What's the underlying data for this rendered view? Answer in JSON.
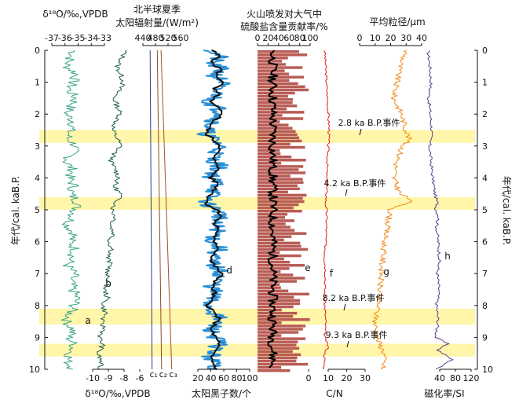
{
  "chart_data": {
    "type": "line",
    "title": "",
    "y_axis": {
      "label_left": "年代/cal. kaB.P.",
      "label_right": "年代/cal. kaB.P.",
      "range": [
        0,
        10
      ],
      "ticks": [
        "0",
        "1",
        "2",
        "3",
        "4",
        "5",
        "6",
        "7",
        "8",
        "9",
        "10"
      ]
    },
    "events": [
      {
        "label": "2.8 ka B.P.事件",
        "start": 2.5,
        "end": 2.9
      },
      {
        "label": "4.2 ka B.P.事件",
        "start": 4.6,
        "end": 5.0
      },
      {
        "label": "8.2 ka B.P.事件",
        "start": 8.1,
        "end": 8.6
      },
      {
        "label": "9.3 ka B.P.事件",
        "start": 9.2,
        "end": 9.6
      }
    ],
    "panels": [
      {
        "id": "a",
        "name": "a",
        "top_label": "δ¹⁸O/‰,VPDB",
        "top_ticks": [
          "-37",
          "-36",
          "-35",
          "-34",
          "-33"
        ],
        "top_range": [
          -37,
          -33
        ],
        "color": "#3aa38a",
        "values": [
          [
            0,
            -35.3
          ],
          [
            0.25,
            -35.6
          ],
          [
            0.5,
            -35.9
          ],
          [
            0.75,
            -35.1
          ],
          [
            1,
            -35.4
          ],
          [
            1.25,
            -35.7
          ],
          [
            1.5,
            -35.2
          ],
          [
            1.75,
            -35.5
          ],
          [
            2,
            -35.9
          ],
          [
            2.25,
            -35.3
          ],
          [
            2.5,
            -35.6
          ],
          [
            2.75,
            -35.8
          ],
          [
            3,
            -35.2
          ],
          [
            3.25,
            -35.5
          ],
          [
            3.5,
            -35.9
          ],
          [
            3.75,
            -35.4
          ],
          [
            4,
            -35.7
          ],
          [
            4.25,
            -35.3
          ],
          [
            4.5,
            -35.6
          ],
          [
            4.75,
            -35.0
          ],
          [
            5,
            -35.2
          ],
          [
            5.25,
            -35.5
          ],
          [
            5.5,
            -35.8
          ],
          [
            5.75,
            -35.3
          ],
          [
            6,
            -35.6
          ],
          [
            6.25,
            -35.2
          ],
          [
            6.5,
            -35.5
          ],
          [
            6.75,
            -35.8
          ],
          [
            7,
            -35.3
          ],
          [
            7.25,
            -35.6
          ],
          [
            7.5,
            -35.4
          ],
          [
            7.75,
            -35.1
          ],
          [
            8,
            -35.3
          ],
          [
            8.25,
            -35.6
          ],
          [
            8.5,
            -35.9
          ],
          [
            8.75,
            -35.4
          ],
          [
            9,
            -35.7
          ],
          [
            9.25,
            -35.3
          ],
          [
            9.5,
            -35.6
          ],
          [
            9.75,
            -35.8
          ],
          [
            10,
            -35.4
          ]
        ]
      },
      {
        "id": "b",
        "name": "b",
        "bottom_label": "δ¹⁸O/‰,VPDB",
        "bottom_ticks": [
          "-10",
          "-9",
          "-8"
        ],
        "bottom_range": [
          -10.5,
          -7.5
        ],
        "color": "#1f5e57",
        "values": [
          [
            0,
            -8.1
          ],
          [
            0.25,
            -8.3
          ],
          [
            0.5,
            -8.6
          ],
          [
            0.75,
            -8.4
          ],
          [
            1,
            -8.2
          ],
          [
            1.25,
            -8.5
          ],
          [
            1.5,
            -8.8
          ],
          [
            1.75,
            -8.6
          ],
          [
            2,
            -8.4
          ],
          [
            2.25,
            -8.7
          ],
          [
            2.5,
            -8.9
          ],
          [
            2.75,
            -8.6
          ],
          [
            3,
            -8.4
          ],
          [
            3.25,
            -8.8
          ],
          [
            3.5,
            -9.0
          ],
          [
            3.75,
            -8.7
          ],
          [
            4,
            -8.5
          ],
          [
            4.25,
            -8.8
          ],
          [
            4.5,
            -8.4
          ],
          [
            4.75,
            -8.6
          ],
          [
            5,
            -8.9
          ],
          [
            5.25,
            -8.7
          ],
          [
            5.5,
            -9.0
          ],
          [
            5.75,
            -8.8
          ],
          [
            6,
            -9.1
          ],
          [
            6.25,
            -8.9
          ],
          [
            6.5,
            -9.2
          ],
          [
            6.75,
            -9.0
          ],
          [
            7,
            -9.3
          ],
          [
            7.25,
            -9.1
          ],
          [
            7.5,
            -9.4
          ],
          [
            7.75,
            -9.2
          ],
          [
            8,
            -9.5
          ],
          [
            8.25,
            -9.3
          ],
          [
            8.5,
            -9.6
          ],
          [
            8.75,
            -9.4
          ],
          [
            9,
            -9.7
          ],
          [
            9.25,
            -9.5
          ],
          [
            9.5,
            -9.8
          ],
          [
            9.75,
            -9.6
          ],
          [
            10,
            -9.7
          ]
        ]
      },
      {
        "id": "c",
        "name": "c",
        "top_label": "北半球夏季",
        "top_label2": "太阳辐射量/(W/m²)",
        "top_ticks": [
          "440",
          "480",
          "520",
          "560"
        ],
        "top_range": [
          440,
          560
        ],
        "bottom_ticks": [
          "-6"
        ],
        "series_labels": [
          "c₁",
          "c₂",
          "c₃"
        ],
        "colors": [
          "#2b3a8c",
          "#8b4a2b",
          "#a0522d"
        ],
        "c1": [
          [
            0,
            465
          ],
          [
            10,
            472
          ]
        ],
        "c2": [
          [
            0,
            490
          ],
          [
            10,
            505
          ]
        ],
        "c3": [
          [
            0,
            503
          ],
          [
            10,
            540
          ]
        ]
      },
      {
        "id": "d",
        "name": "d",
        "bottom_label": "太阳黑子数/个",
        "bottom_ticks": [
          "20",
          "40",
          "60",
          "80",
          "100"
        ],
        "bottom_range": [
          0,
          100
        ],
        "colors": [
          "#2a8fd6",
          "#111111"
        ],
        "values": [
          [
            0,
            40
          ],
          [
            0.2,
            52
          ],
          [
            0.4,
            38
          ],
          [
            0.6,
            55
          ],
          [
            0.8,
            45
          ],
          [
            1,
            60
          ],
          [
            1.2,
            42
          ],
          [
            1.4,
            50
          ],
          [
            1.6,
            35
          ],
          [
            1.8,
            48
          ],
          [
            2,
            58
          ],
          [
            2.2,
            44
          ],
          [
            2.4,
            36
          ],
          [
            2.6,
            30
          ],
          [
            2.8,
            42
          ],
          [
            3,
            55
          ],
          [
            3.2,
            48
          ],
          [
            3.4,
            40
          ],
          [
            3.6,
            52
          ],
          [
            3.8,
            46
          ],
          [
            4,
            38
          ],
          [
            4.2,
            50
          ],
          [
            4.4,
            44
          ],
          [
            4.6,
            36
          ],
          [
            4.8,
            30
          ],
          [
            5,
            48
          ],
          [
            5.2,
            56
          ],
          [
            5.4,
            42
          ],
          [
            5.6,
            50
          ],
          [
            5.8,
            46
          ],
          [
            6,
            40
          ],
          [
            6.2,
            52
          ],
          [
            6.4,
            44
          ],
          [
            6.6,
            38
          ],
          [
            6.8,
            46
          ],
          [
            7,
            55
          ],
          [
            7.2,
            48
          ],
          [
            7.4,
            40
          ],
          [
            7.6,
            44
          ],
          [
            7.8,
            38
          ],
          [
            8,
            34
          ],
          [
            8.2,
            42
          ],
          [
            8.4,
            50
          ],
          [
            8.6,
            44
          ],
          [
            8.8,
            38
          ],
          [
            9,
            46
          ],
          [
            9.2,
            52
          ],
          [
            9.4,
            44
          ],
          [
            9.6,
            38
          ],
          [
            9.8,
            42
          ],
          [
            10,
            48
          ]
        ]
      },
      {
        "id": "e",
        "name": "e",
        "top_label": "火山喷发对大气中",
        "top_label2": "硫酸盐含量贡献率/%",
        "top_ticks": [
          "0",
          "20",
          "40",
          "60",
          "80",
          "100"
        ],
        "top_range": [
          0,
          100
        ],
        "bottom_ticks": [
          "0"
        ],
        "color": "#b85c55"
      },
      {
        "id": "f",
        "name": "f",
        "bottom_label": "C/N",
        "bottom_ticks": [
          "10",
          "20",
          "30"
        ],
        "bottom_range": [
          0,
          30
        ],
        "color": "#e02020",
        "values": [
          [
            0,
            7
          ],
          [
            0.5,
            7.5
          ],
          [
            1,
            8
          ],
          [
            1.5,
            8.5
          ],
          [
            2,
            9
          ],
          [
            2.5,
            9.5
          ],
          [
            3,
            9
          ],
          [
            3.5,
            8.5
          ],
          [
            4,
            8
          ],
          [
            4.5,
            8
          ],
          [
            4.8,
            7.5
          ],
          [
            5,
            8
          ],
          [
            5.5,
            8
          ],
          [
            6,
            7.5
          ],
          [
            6.5,
            7
          ],
          [
            7,
            7.5
          ],
          [
            7.5,
            7
          ],
          [
            8,
            7
          ],
          [
            8.5,
            7.5
          ],
          [
            9,
            7
          ],
          [
            9.3,
            9
          ],
          [
            9.5,
            7
          ],
          [
            10,
            6.5
          ]
        ]
      },
      {
        "id": "g",
        "name": "g",
        "top_label": "平均粒径/μm",
        "top_ticks": [
          "0",
          "10",
          "20",
          "30",
          "40"
        ],
        "top_range": [
          0,
          40
        ],
        "color": "#f08c1e",
        "values": [
          [
            0,
            30
          ],
          [
            0.5,
            26
          ],
          [
            1,
            24
          ],
          [
            1.5,
            22
          ],
          [
            2,
            27
          ],
          [
            2.5,
            30
          ],
          [
            2.8,
            32
          ],
          [
            3,
            28
          ],
          [
            3.5,
            24
          ],
          [
            4,
            22
          ],
          [
            4.5,
            26
          ],
          [
            4.7,
            34
          ],
          [
            5,
            20
          ],
          [
            5.5,
            18
          ],
          [
            6,
            16
          ],
          [
            6.5,
            15
          ],
          [
            7,
            14
          ],
          [
            7.5,
            13
          ],
          [
            8,
            12
          ],
          [
            8.5,
            10
          ],
          [
            9,
            11
          ],
          [
            9.3,
            14
          ],
          [
            9.5,
            16
          ],
          [
            10,
            15
          ]
        ]
      },
      {
        "id": "h",
        "name": "h",
        "bottom_label": "磁化率/SI",
        "bottom_ticks": [
          "40",
          "80",
          "120"
        ],
        "bottom_range": [
          0,
          120
        ],
        "color": "#5a3f91",
        "values": [
          [
            0,
            10
          ],
          [
            0.5,
            15
          ],
          [
            1,
            18
          ],
          [
            1.5,
            12
          ],
          [
            2,
            16
          ],
          [
            2.5,
            20
          ],
          [
            3,
            14
          ],
          [
            3.5,
            18
          ],
          [
            4,
            22
          ],
          [
            4.5,
            28
          ],
          [
            4.8,
            34
          ],
          [
            5,
            30
          ],
          [
            5.2,
            38
          ],
          [
            5.5,
            32
          ],
          [
            6,
            36
          ],
          [
            6.5,
            40
          ],
          [
            7,
            34
          ],
          [
            7.5,
            38
          ],
          [
            8,
            32
          ],
          [
            8.5,
            36
          ],
          [
            9,
            30
          ],
          [
            9.2,
            60
          ],
          [
            9.4,
            35
          ],
          [
            9.7,
            72
          ],
          [
            10,
            30
          ]
        ]
      }
    ]
  }
}
